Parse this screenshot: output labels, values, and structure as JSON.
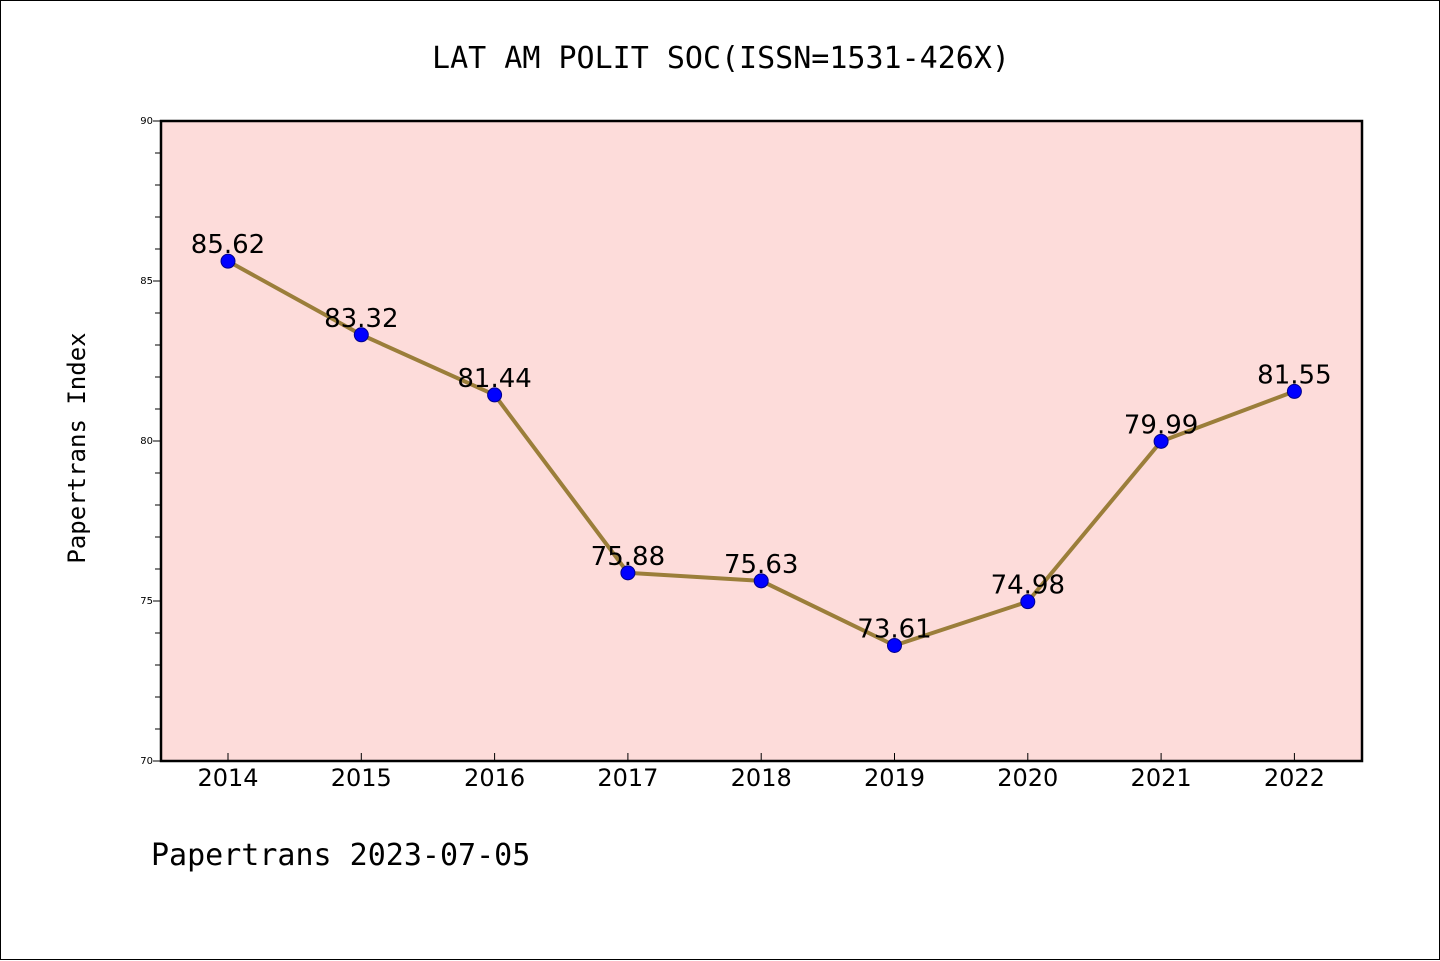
{
  "chart_data": {
    "type": "line",
    "title": "LAT AM POLIT SOC(ISSN=1531-426X)",
    "ylabel": "Papertrans Index",
    "xlabel": "",
    "categories": [
      "2014",
      "2015",
      "2016",
      "2017",
      "2018",
      "2019",
      "2020",
      "2021",
      "2022"
    ],
    "series": [
      {
        "values": [
          85.62,
          83.32,
          81.44,
          75.88,
          75.63,
          73.61,
          74.98,
          79.99,
          81.55
        ],
        "labels": [
          "85.62",
          "83.32",
          "81.44",
          "75.88",
          "75.63",
          "73.61",
          "74.98",
          "79.99",
          "81.55"
        ],
        "line_color": "#9b7e3a",
        "marker_color": "#0000ff"
      }
    ],
    "ylim": [
      70,
      90
    ],
    "yticks": [
      "70",
      "75",
      "80",
      "85",
      "90"
    ],
    "plot_background": "#fddcda",
    "grid": false,
    "legend": "none"
  },
  "footer": "Papertrans 2023-07-05"
}
